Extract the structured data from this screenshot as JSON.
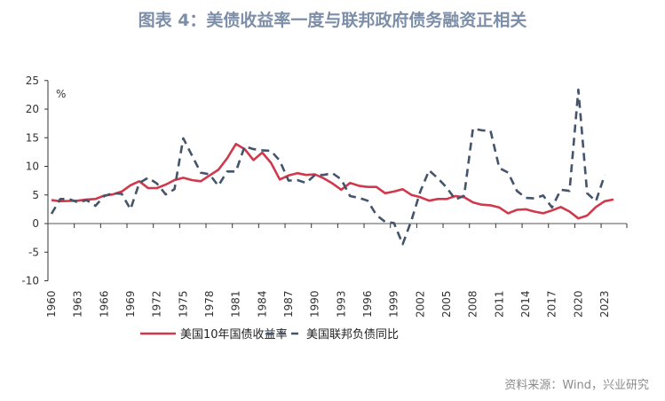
{
  "title": "图表 4：美债收益率一度与联邦政府债务融资正相关",
  "source": "资料来源：Wind，兴业研究",
  "chart_data": {
    "type": "line",
    "title": "图表 4：美债收益率一度与联邦政府债务融资正相关",
    "unit_label": "%",
    "ylim": [
      -10,
      25
    ],
    "yticks": [
      -10,
      -5,
      0,
      5,
      10,
      15,
      20,
      25
    ],
    "xticks": [
      1960,
      1963,
      1966,
      1969,
      1972,
      1975,
      1978,
      1981,
      1984,
      1987,
      1990,
      1993,
      1996,
      1999,
      2002,
      2005,
      2008,
      2011,
      2014,
      2017,
      2020,
      2023
    ],
    "grid": false,
    "legend_position": "bottom",
    "series": [
      {
        "name": "美国10年国债收益率",
        "color": "#d0394c",
        "style": "solid",
        "x": [
          1960,
          1961,
          1962,
          1963,
          1964,
          1965,
          1966,
          1967,
          1968,
          1969,
          1970,
          1971,
          1972,
          1973,
          1974,
          1975,
          1976,
          1977,
          1978,
          1979,
          1980,
          1981,
          1982,
          1983,
          1984,
          1985,
          1986,
          1987,
          1988,
          1989,
          1990,
          1991,
          1992,
          1993,
          1994,
          1995,
          1996,
          1997,
          1998,
          1999,
          2000,
          2001,
          2002,
          2003,
          2004,
          2005,
          2006,
          2007,
          2008,
          2009,
          2010,
          2011,
          2012,
          2013,
          2014,
          2015,
          2016,
          2017,
          2018,
          2019,
          2020,
          2021,
          2022,
          2023,
          2024
        ],
        "values": [
          4.1,
          3.9,
          3.95,
          4.0,
          4.2,
          4.3,
          4.9,
          5.1,
          5.6,
          6.7,
          7.4,
          6.2,
          6.2,
          6.8,
          7.6,
          8.0,
          7.6,
          7.4,
          8.4,
          9.4,
          11.4,
          13.9,
          13.0,
          11.1,
          12.4,
          10.6,
          7.7,
          8.4,
          8.8,
          8.5,
          8.6,
          7.9,
          7.0,
          5.9,
          7.1,
          6.6,
          6.4,
          6.4,
          5.3,
          5.6,
          6.0,
          5.0,
          4.6,
          4.0,
          4.3,
          4.3,
          4.8,
          4.6,
          3.7,
          3.3,
          3.2,
          2.8,
          1.8,
          2.4,
          2.5,
          2.1,
          1.8,
          2.3,
          2.9,
          2.1,
          0.9,
          1.4,
          2.9,
          3.9,
          4.2
        ]
      },
      {
        "name": "美国联邦负债同比",
        "color": "#44546a",
        "style": "dashed",
        "x": [
          1960,
          1961,
          1962,
          1963,
          1964,
          1965,
          1966,
          1967,
          1968,
          1969,
          1970,
          1971,
          1972,
          1973,
          1974,
          1975,
          1976,
          1977,
          1978,
          1979,
          1980,
          1981,
          1982,
          1983,
          1984,
          1985,
          1986,
          1987,
          1988,
          1989,
          1990,
          1991,
          1992,
          1993,
          1994,
          1995,
          1996,
          1997,
          1998,
          1999,
          2000,
          2001,
          2002,
          2003,
          2004,
          2005,
          2006,
          2007,
          2008,
          2009,
          2010,
          2011,
          2012,
          2013,
          2014,
          2015,
          2016,
          2017,
          2018,
          2019,
          2020,
          2021,
          2022,
          2023
        ],
        "values": [
          1.7,
          4.3,
          4.3,
          3.7,
          4.1,
          3.1,
          4.8,
          5.3,
          5.2,
          2.5,
          7.1,
          8.0,
          7.0,
          5.1,
          6.0,
          14.9,
          11.9,
          8.9,
          8.6,
          6.6,
          9.1,
          9.1,
          13.5,
          13.0,
          12.8,
          12.7,
          11.0,
          7.5,
          7.6,
          7.1,
          8.5,
          8.5,
          8.8,
          7.7,
          4.8,
          4.5,
          4.0,
          1.5,
          0.3,
          0.1,
          -3.6,
          0.6,
          5.6,
          9.3,
          7.9,
          6.3,
          4.2,
          4.9,
          16.6,
          16.3,
          16.2,
          9.7,
          8.9,
          5.7,
          4.5,
          4.4,
          4.9,
          2.8,
          5.9,
          5.7,
          23.4,
          5.3,
          3.9,
          8.5
        ]
      }
    ]
  }
}
